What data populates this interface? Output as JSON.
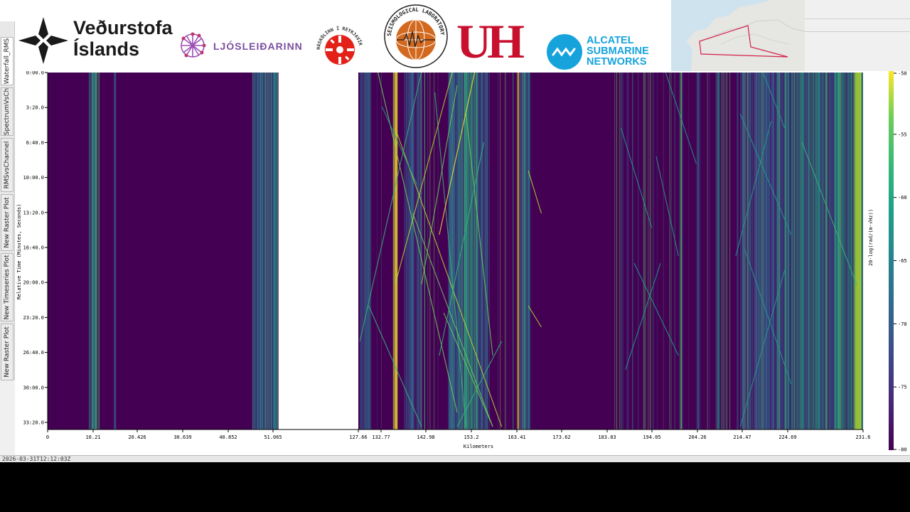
{
  "side_tabs": [
    {
      "label": "Waterfall_RMS",
      "active": true
    },
    {
      "label": "SpectrumVsCh",
      "active": false
    },
    {
      "label": "RMSvsChannel",
      "active": false
    },
    {
      "label": "New Raster Plot",
      "active": false
    },
    {
      "label": "New Timeseries Plot",
      "active": false
    },
    {
      "label": "New Raster Plot",
      "active": false
    }
  ],
  "logos": {
    "vedurstofa_line1": "Veðurstofa",
    "vedurstofa_line2": "Íslands",
    "ljosleidarinn": "LJÓSLEIÐARINN",
    "reykjavik_ring": "HÁSKÓLINN Í REYKJAVÍK",
    "seismo_ring": "SEISMOLOGICAL LABORATORY",
    "uh": "UH",
    "alcatel_line1": "ALCATEL",
    "alcatel_line2": "SUBMARINE",
    "alcatel_line3": "NETWORKS"
  },
  "colors": {
    "plot_bg": "#440154",
    "vedurstofa": "#1a1a1a",
    "ljosleidarinn": "#7a4fa0",
    "reykjavik_red": "#e32119",
    "seismo_orange": "#d2691e",
    "uh_red": "#c8102e",
    "alcatel_blue": "#16a3dc",
    "status_green": "#22cc22"
  },
  "chart_data": {
    "type": "heatmap",
    "xlabel": "Kilometers",
    "ylabel": "Relative Time (Minutes, Seconds)",
    "x_ticks": [
      "0",
      "10.21",
      "20.426",
      "30.639",
      "40.852",
      "51.065",
      "127.66",
      "132.77",
      "142.98",
      "153.2",
      "163.41",
      "173.62",
      "183.83",
      "194.05",
      "204.26",
      "214.47",
      "224.69",
      "231.6"
    ],
    "y_ticks": [
      "0:00.0",
      "3:20.0",
      "6:40.0",
      "10:00.0",
      "13:20.0",
      "16:40.0",
      "20:00.0",
      "23:20.0",
      "26:40.0",
      "30:00.0",
      "33:20.0"
    ],
    "colorbar_label": "20·log(rad/(m·√Hz))",
    "colorbar_ticks": [
      "-50",
      "-55",
      "-60",
      "-65",
      "-70",
      "-75",
      "-80"
    ],
    "colorbar_range": [
      -80,
      -50
    ],
    "colormap": "viridis",
    "gap_km": [
      56.0,
      127.66
    ],
    "grid": false
  },
  "status": {
    "timestamp": "2026-03-31T12:12:03Z"
  }
}
